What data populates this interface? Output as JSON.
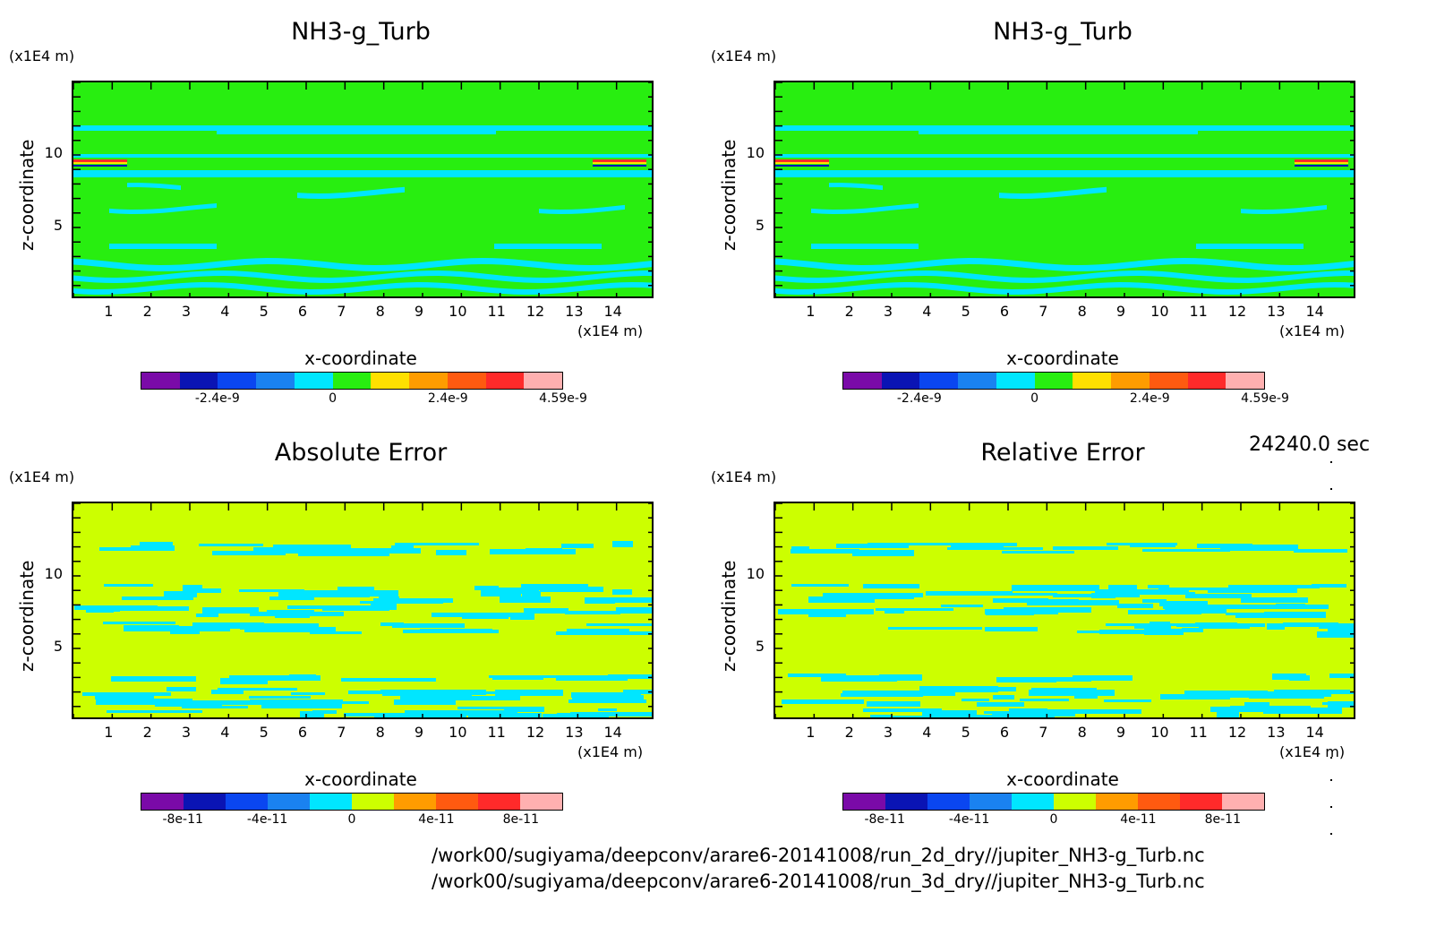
{
  "chart_data": [
    {
      "type": "heatmap",
      "title": "NH3-g_Turb",
      "xlabel": "x-coordinate",
      "ylabel": "z-coordinate",
      "x_unit": "(x1E4 m)",
      "y_unit": "(x1E4 m)",
      "xlim": [
        0,
        15
      ],
      "ylim": [
        0,
        15
      ],
      "xticks": [
        "1",
        "2",
        "3",
        "4",
        "5",
        "6",
        "7",
        "8",
        "9",
        "10",
        "11",
        "12",
        "13",
        "14"
      ],
      "yticks": [
        "5",
        "10"
      ],
      "colorbar_ticks": [
        "-2.4e-9",
        "0",
        "2.4e-9",
        "4.59e-9"
      ],
      "colorbar_colors": [
        "#7a0aa8",
        "#0a14b4",
        "#0a46f0",
        "#1a82f0",
        "#00e6ff",
        "#28ee10",
        "#ffe000",
        "#ff9c00",
        "#ff5a10",
        "#ff2a2a",
        "#ffb0b0"
      ],
      "background": "#28ee10"
    },
    {
      "type": "heatmap",
      "title": "NH3-g_Turb",
      "xlabel": "x-coordinate",
      "ylabel": "z-coordinate",
      "x_unit": "(x1E4 m)",
      "y_unit": "(x1E4 m)",
      "xlim": [
        0,
        15
      ],
      "ylim": [
        0,
        15
      ],
      "xticks": [
        "1",
        "2",
        "3",
        "4",
        "5",
        "6",
        "7",
        "8",
        "9",
        "10",
        "11",
        "12",
        "13",
        "14"
      ],
      "yticks": [
        "5",
        "10"
      ],
      "colorbar_ticks": [
        "-2.4e-9",
        "0",
        "2.4e-9",
        "4.59e-9"
      ],
      "colorbar_colors": [
        "#7a0aa8",
        "#0a14b4",
        "#0a46f0",
        "#1a82f0",
        "#00e6ff",
        "#28ee10",
        "#ffe000",
        "#ff9c00",
        "#ff5a10",
        "#ff2a2a",
        "#ffb0b0"
      ],
      "background": "#28ee10"
    },
    {
      "type": "heatmap",
      "title": "Absolute Error",
      "xlabel": "x-coordinate",
      "ylabel": "z-coordinate",
      "x_unit": "(x1E4 m)",
      "y_unit": "(x1E4 m)",
      "xlim": [
        0,
        15
      ],
      "ylim": [
        0,
        15
      ],
      "xticks": [
        "1",
        "2",
        "3",
        "4",
        "5",
        "6",
        "7",
        "8",
        "9",
        "10",
        "11",
        "12",
        "13",
        "14"
      ],
      "yticks": [
        "5",
        "10"
      ],
      "colorbar_ticks": [
        "-8e-11",
        "-4e-11",
        "0",
        "4e-11",
        "8e-11"
      ],
      "colorbar_colors": [
        "#7a0aa8",
        "#0a14b4",
        "#0a46f0",
        "#1a82f0",
        "#00e6ff",
        "#ccff00",
        "#ff9c00",
        "#ff5a10",
        "#ff2a2a",
        "#ffb0b0"
      ],
      "background": "#ccff00"
    },
    {
      "type": "heatmap",
      "title": "Relative Error",
      "xlabel": "x-coordinate",
      "ylabel": "z-coordinate",
      "x_unit": "(x1E4 m)",
      "y_unit": "(x1E4 m)",
      "xlim": [
        0,
        15
      ],
      "ylim": [
        0,
        15
      ],
      "xticks": [
        "1",
        "2",
        "3",
        "4",
        "5",
        "6",
        "7",
        "8",
        "9",
        "10",
        "11",
        "12",
        "13",
        "14"
      ],
      "yticks": [
        "5",
        "10"
      ],
      "colorbar_ticks": [
        "-8e-11",
        "-4e-11",
        "0",
        "4e-11",
        "8e-11"
      ],
      "colorbar_colors": [
        "#7a0aa8",
        "#0a14b4",
        "#0a46f0",
        "#1a82f0",
        "#00e6ff",
        "#ccff00",
        "#ff9c00",
        "#ff5a10",
        "#ff2a2a",
        "#ffb0b0"
      ],
      "background": "#ccff00"
    }
  ],
  "time_label": "24240.0 sec",
  "file_paths": [
    "/work00/sugiyama/deepconv/arare6-20141008/run_2d_dry//jupiter_NH3-g_Turb.nc",
    "/work00/sugiyama/deepconv/arare6-20141008/run_3d_dry//jupiter_NH3-g_Turb.nc"
  ]
}
